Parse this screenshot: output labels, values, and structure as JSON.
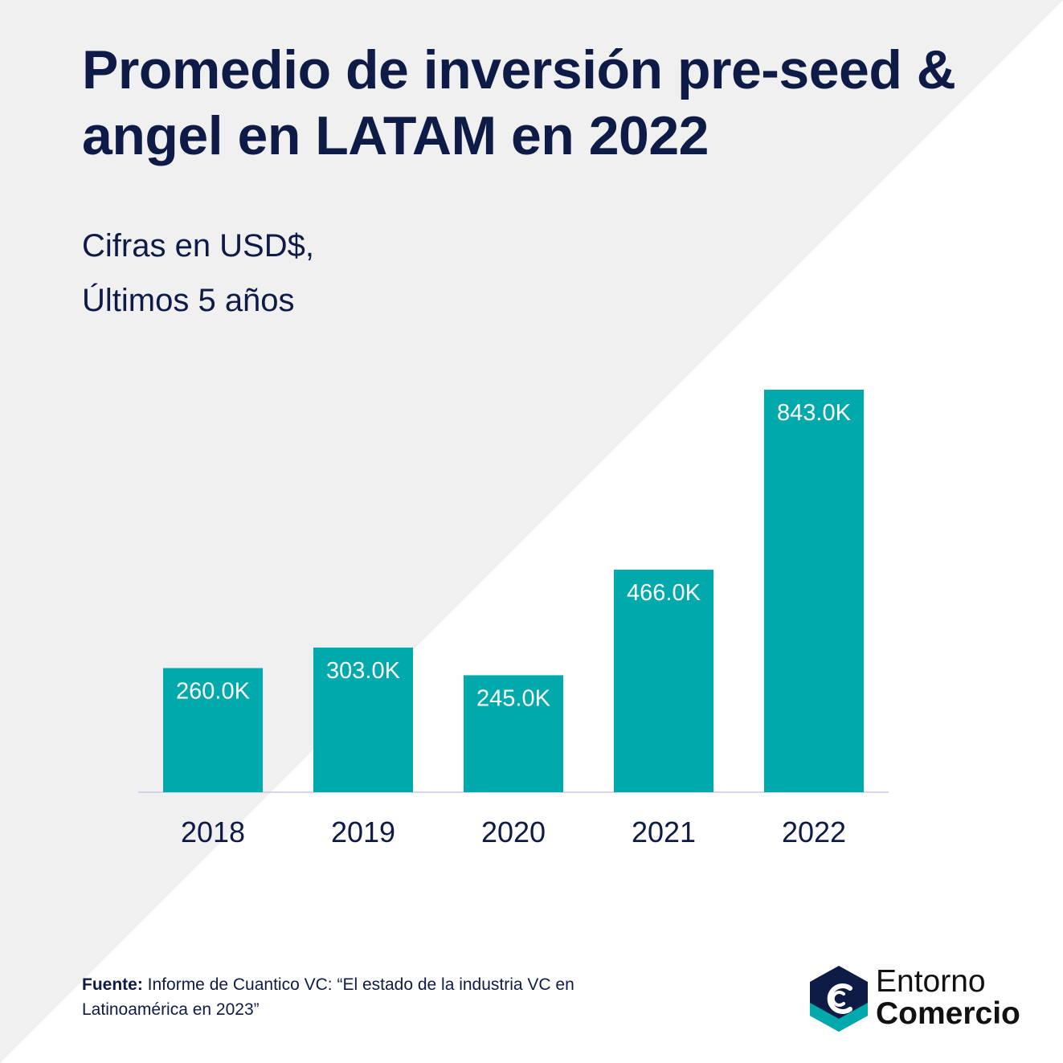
{
  "title": "Promedio de inversión pre-seed & angel en LATAM en 2022",
  "subtitle_line1": "Cifras en USD$,",
  "subtitle_line2": "Últimos 5 años",
  "colors": {
    "bar": "#00a9ab",
    "text": "#0d1b46",
    "bg_gray": "#f0f0f0",
    "logo_dark": "#0d1b46",
    "logo_teal": "#00a9ab"
  },
  "chart_data": {
    "type": "bar",
    "categories": [
      "2018",
      "2019",
      "2020",
      "2021",
      "2022"
    ],
    "values": [
      260.0,
      303.0,
      245.0,
      466.0,
      843.0
    ],
    "data_labels": [
      "260.0K",
      "303.0K",
      "245.0K",
      "466.0K",
      "843.0K"
    ],
    "xlabel": "",
    "ylabel": "",
    "ylim": [
      0,
      843.0
    ],
    "grid": false,
    "legend": "none"
  },
  "source": {
    "label": "Fuente:",
    "text": "Informe de Cuantico VC: “El estado de la industria VC en Latinoamérica en 2023”"
  },
  "logo": {
    "line1": "Entorno",
    "line2": "Comercio"
  }
}
